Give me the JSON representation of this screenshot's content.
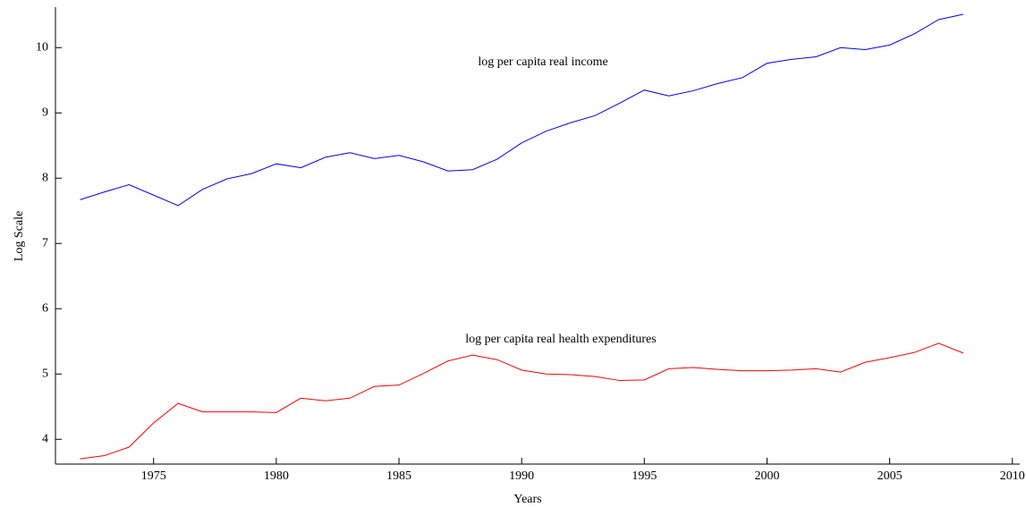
{
  "chart_data": {
    "type": "line",
    "x_label": "Years",
    "y_label": "Log Scale",
    "annotations": [
      "log per capita real income",
      "log per capita real health expenditures"
    ],
    "x": [
      1972,
      1973,
      1974,
      1975,
      1976,
      1977,
      1978,
      1979,
      1980,
      1981,
      1982,
      1983,
      1984,
      1985,
      1986,
      1987,
      1988,
      1989,
      1990,
      1991,
      1992,
      1993,
      1994,
      1995,
      1996,
      1997,
      1998,
      1999,
      2000,
      2001,
      2002,
      2003,
      2004,
      2005,
      2006,
      2007,
      2008
    ],
    "series": [
      {
        "color": "#0000ff",
        "values": [
          7.67,
          7.79,
          7.9,
          7.74,
          7.58,
          7.83,
          7.99,
          8.07,
          8.22,
          8.16,
          8.32,
          8.39,
          8.3,
          8.35,
          8.25,
          8.11,
          8.13,
          8.29,
          8.54,
          8.72,
          8.85,
          8.96,
          9.15,
          9.35,
          9.26,
          9.34,
          9.45,
          9.54,
          9.76,
          9.82,
          9.86,
          10.0,
          9.97,
          10.04,
          10.21,
          10.43,
          10.51
        ]
      },
      {
        "color": "#ff0000",
        "values": [
          3.7,
          3.75,
          3.88,
          4.25,
          4.55,
          4.42,
          4.42,
          4.42,
          4.41,
          4.63,
          4.59,
          4.63,
          4.81,
          4.83,
          5.01,
          5.2,
          5.29,
          5.22,
          5.06,
          5.0,
          4.99,
          4.96,
          4.9,
          4.91,
          5.08,
          5.1,
          5.07,
          5.05,
          5.05,
          5.06,
          5.08,
          5.03,
          5.18,
          5.25,
          5.33,
          5.47,
          5.32
        ]
      }
    ],
    "xlim": [
      1971,
      2010.3
    ],
    "ylim": [
      3.62,
      10.62
    ],
    "xticks": [
      1975,
      1980,
      1985,
      1990,
      1995,
      2000,
      2005,
      2010
    ],
    "yticks": [
      4,
      5,
      6,
      7,
      8,
      9,
      10
    ],
    "grid": false
  }
}
